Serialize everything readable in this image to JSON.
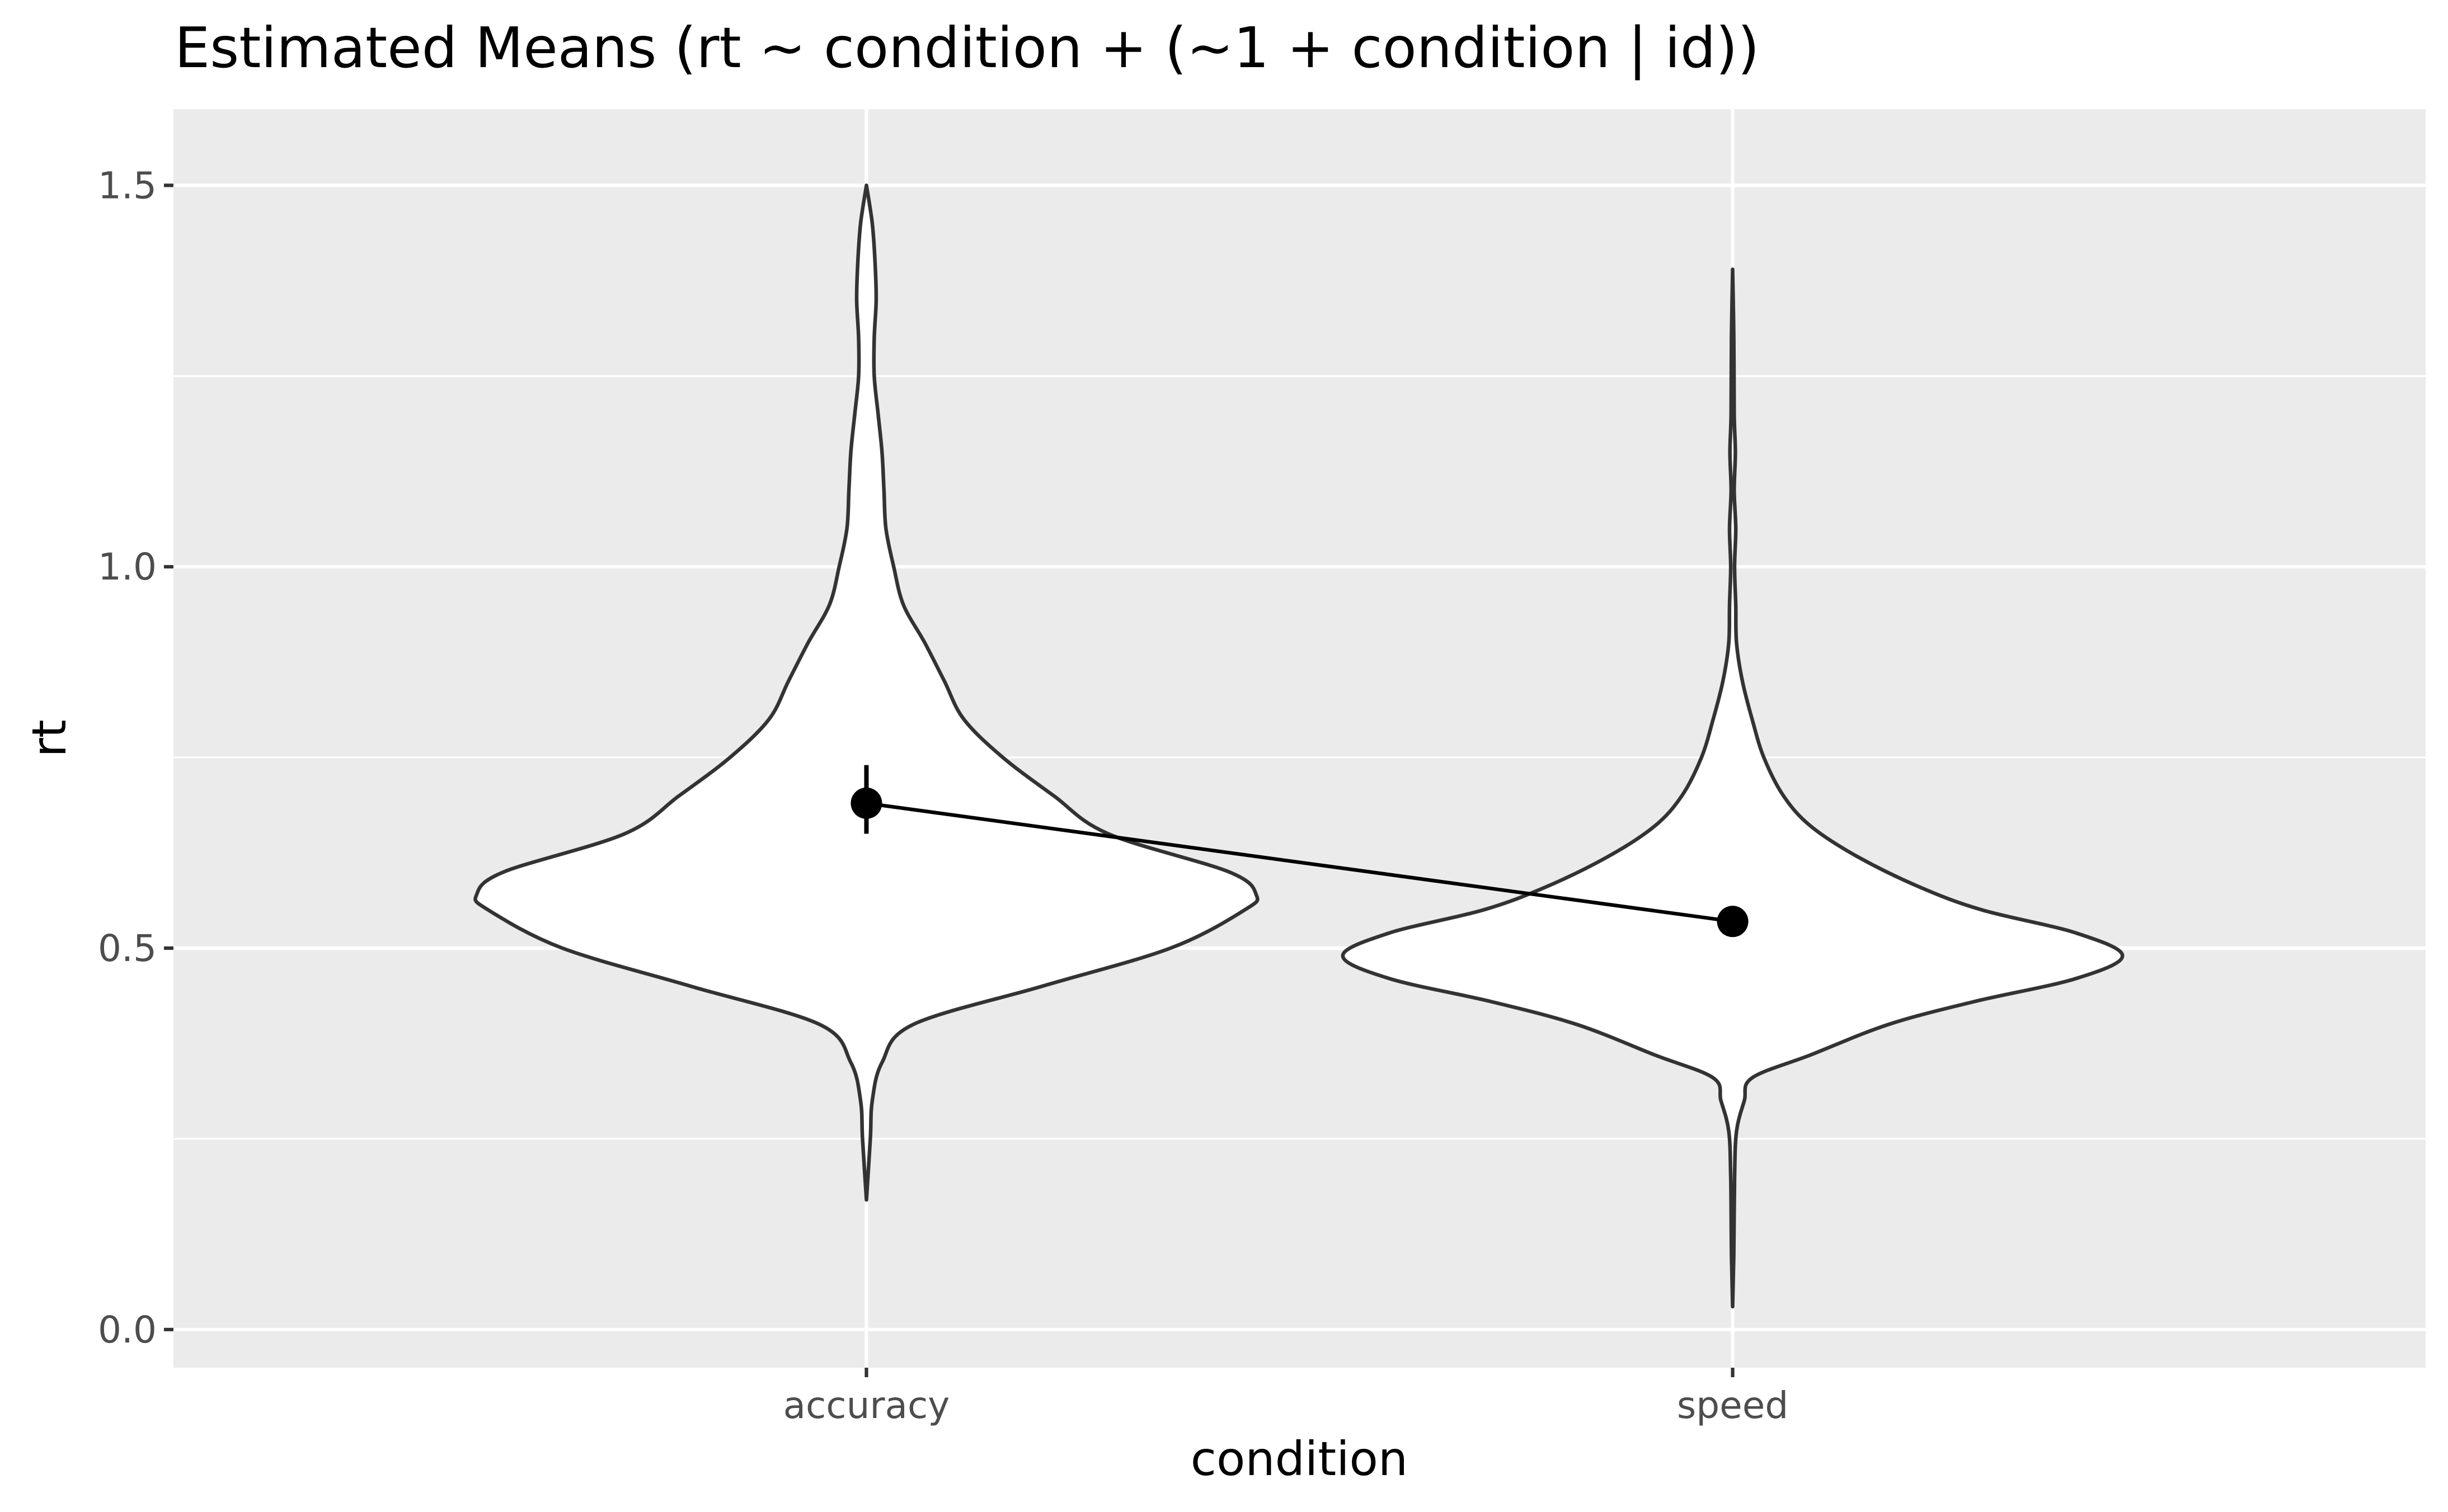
{
  "chart_data": {
    "type": "violin",
    "title": "Estimated Means (rt ~ condition + (~1 + condition | id))",
    "xlabel": "condition",
    "ylabel": "rt",
    "categories": [
      "accuracy",
      "speed"
    ],
    "ylim": [
      -0.05,
      1.6
    ],
    "yticks": [
      0.0,
      0.5,
      1.0,
      1.5
    ],
    "yticklabels": [
      "0.0",
      "0.5",
      "1.0",
      "1.5"
    ],
    "ygrid_minor": [
      0.25,
      0.75,
      1.25
    ],
    "grid": true,
    "colors": {
      "panel": "#ebebeb",
      "grid": "#ffffff",
      "violin_fill": "#ffffff",
      "violin_outline": "#333333",
      "estimate": "#000000",
      "tick_label": "#4d4d4d"
    },
    "means": [
      {
        "category": "accuracy",
        "estimate": 0.69,
        "ci_low": 0.65,
        "ci_high": 0.74
      },
      {
        "category": "speed",
        "estimate": 0.535,
        "ci_low": 0.525,
        "ci_high": 0.545
      }
    ],
    "violins": [
      {
        "category": "accuracy",
        "min": 0.17,
        "max": 1.5,
        "density": [
          {
            "y": 0.17,
            "w": 0.0
          },
          {
            "y": 0.25,
            "w": 0.01
          },
          {
            "y": 0.3,
            "w": 0.015
          },
          {
            "y": 0.35,
            "w": 0.04
          },
          {
            "y": 0.4,
            "w": 0.12
          },
          {
            "y": 0.45,
            "w": 0.45
          },
          {
            "y": 0.5,
            "w": 0.78
          },
          {
            "y": 0.55,
            "w": 0.97
          },
          {
            "y": 0.57,
            "w": 1.0
          },
          {
            "y": 0.6,
            "w": 0.93
          },
          {
            "y": 0.65,
            "w": 0.62
          },
          {
            "y": 0.7,
            "w": 0.48
          },
          {
            "y": 0.75,
            "w": 0.35
          },
          {
            "y": 0.8,
            "w": 0.25
          },
          {
            "y": 0.85,
            "w": 0.2
          },
          {
            "y": 0.9,
            "w": 0.15
          },
          {
            "y": 0.95,
            "w": 0.095
          },
          {
            "y": 1.0,
            "w": 0.07
          },
          {
            "y": 1.05,
            "w": 0.05
          },
          {
            "y": 1.1,
            "w": 0.045
          },
          {
            "y": 1.15,
            "w": 0.04
          },
          {
            "y": 1.2,
            "w": 0.03
          },
          {
            "y": 1.25,
            "w": 0.02
          },
          {
            "y": 1.3,
            "w": 0.02
          },
          {
            "y": 1.35,
            "w": 0.025
          },
          {
            "y": 1.4,
            "w": 0.022
          },
          {
            "y": 1.45,
            "w": 0.015
          },
          {
            "y": 1.5,
            "w": 0.0
          }
        ]
      },
      {
        "category": "speed",
        "min": 0.03,
        "max": 1.39,
        "density": [
          {
            "y": 0.03,
            "w": 0.0
          },
          {
            "y": 0.1,
            "w": 0.003
          },
          {
            "y": 0.2,
            "w": 0.005
          },
          {
            "y": 0.26,
            "w": 0.01
          },
          {
            "y": 0.3,
            "w": 0.03
          },
          {
            "y": 0.33,
            "w": 0.05
          },
          {
            "y": 0.36,
            "w": 0.2
          },
          {
            "y": 0.4,
            "w": 0.4
          },
          {
            "y": 0.43,
            "w": 0.62
          },
          {
            "y": 0.46,
            "w": 0.88
          },
          {
            "y": 0.49,
            "w": 1.0
          },
          {
            "y": 0.52,
            "w": 0.88
          },
          {
            "y": 0.55,
            "w": 0.64
          },
          {
            "y": 0.58,
            "w": 0.48
          },
          {
            "y": 0.62,
            "w": 0.32
          },
          {
            "y": 0.66,
            "w": 0.2
          },
          {
            "y": 0.7,
            "w": 0.13
          },
          {
            "y": 0.75,
            "w": 0.08
          },
          {
            "y": 0.8,
            "w": 0.05
          },
          {
            "y": 0.85,
            "w": 0.025
          },
          {
            "y": 0.9,
            "w": 0.01
          },
          {
            "y": 0.95,
            "w": 0.008
          },
          {
            "y": 1.0,
            "w": 0.005
          },
          {
            "y": 1.05,
            "w": 0.008
          },
          {
            "y": 1.1,
            "w": 0.004
          },
          {
            "y": 1.15,
            "w": 0.007
          },
          {
            "y": 1.2,
            "w": 0.004
          },
          {
            "y": 1.3,
            "w": 0.003
          },
          {
            "y": 1.39,
            "w": 0.0
          }
        ]
      }
    ]
  }
}
